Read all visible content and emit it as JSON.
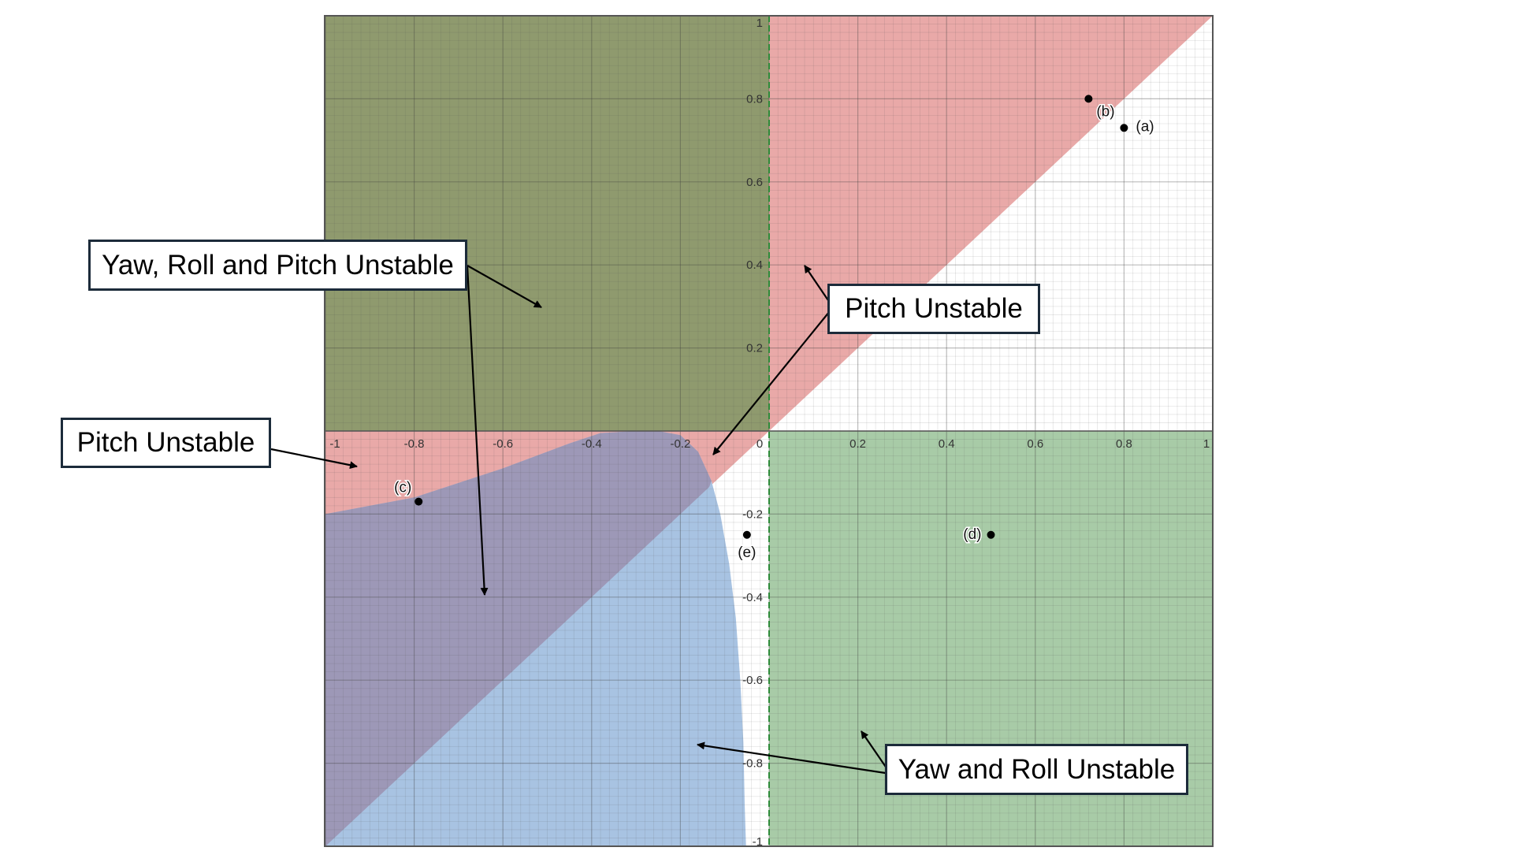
{
  "chart_data": {
    "type": "region-plot",
    "xlim": [
      -1,
      1
    ],
    "ylim": [
      -1,
      1
    ],
    "grid": true,
    "x_ticks": [
      "-1",
      "-0.8",
      "-0.6",
      "-0.4",
      "-0.2",
      "0",
      "0.2",
      "0.4",
      "0.6",
      "0.8",
      "1"
    ],
    "y_ticks": [
      "-1",
      "-0.8",
      "-0.6",
      "-0.4",
      "-0.2",
      "0.2",
      "0.4",
      "0.6",
      "0.8",
      "1"
    ],
    "regions": [
      {
        "id": "olive",
        "color": "#8f9a6e",
        "description": "x < 0, y > 0"
      },
      {
        "id": "red",
        "color": "#e9a9a8",
        "description": "y > x"
      },
      {
        "id": "green",
        "color": "#a8cba7",
        "description": "x > 0, y < 0"
      },
      {
        "id": "blue",
        "color": "#a8c3e2"
      },
      {
        "id": "purple",
        "color": "#9d98b7"
      }
    ],
    "points": [
      {
        "label": "(a)",
        "x": 0.8,
        "y": 0.73
      },
      {
        "label": "(b)",
        "x": 0.72,
        "y": 0.8
      },
      {
        "label": "(c)",
        "x": -0.79,
        "y": -0.17
      },
      {
        "label": "(d)",
        "x": 0.5,
        "y": -0.25
      },
      {
        "label": "(e)",
        "x": -0.05,
        "y": -0.25
      }
    ]
  },
  "callouts": {
    "yaw_roll_pitch": "Yaw, Roll and Pitch Unstable",
    "pitch_right": "Pitch Unstable",
    "pitch_left": "Pitch Unstable",
    "yaw_roll": "Yaw and Roll Unstable"
  },
  "colors": {
    "axis": "#2e8b3a",
    "border": "#555555",
    "callout_border": "#1c2b3a"
  }
}
